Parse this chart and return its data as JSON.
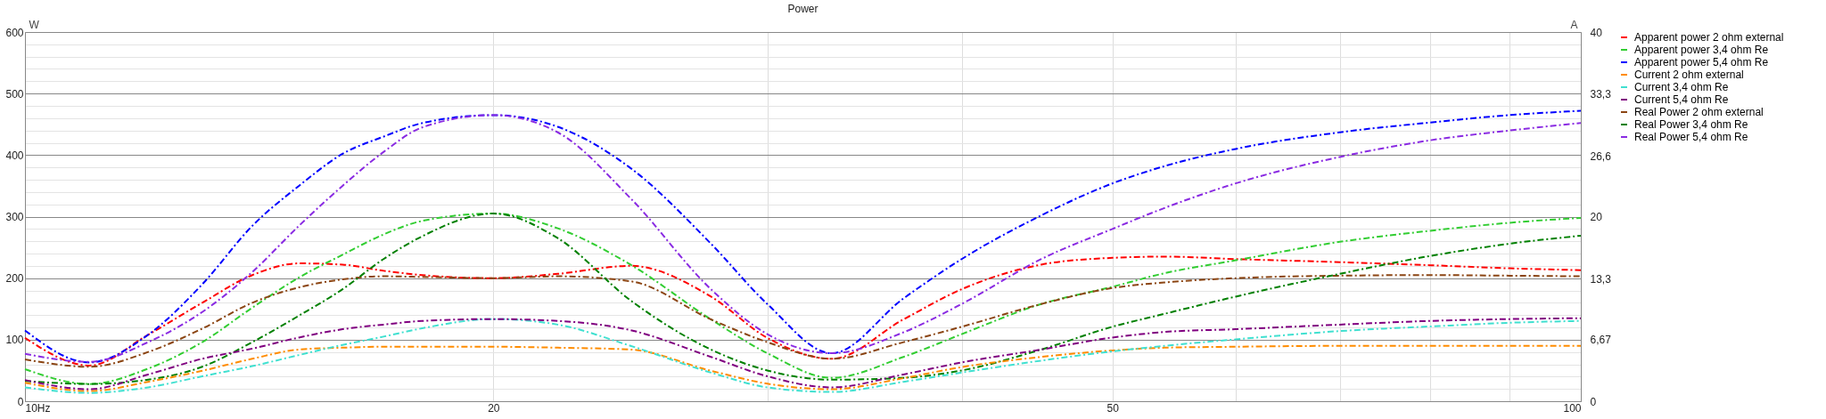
{
  "chart_data": {
    "type": "line",
    "title": "Power",
    "ylabel": "W",
    "y2label": "A",
    "log": "x",
    "grid": true,
    "legend": "right",
    "line_style": "dashed",
    "x": [
      10,
      11,
      12,
      13,
      14,
      15,
      16,
      17,
      18,
      20,
      22,
      24.5,
      27.6,
      30,
      33,
      36.7,
      40,
      45,
      50,
      54,
      60,
      70,
      80,
      90,
      100
    ],
    "xlim": [
      10,
      100
    ],
    "xticks": [
      {
        "value": 10,
        "label": "10Hz"
      },
      20,
      {
        "value": 30,
        "label": null
      },
      {
        "value": 40,
        "label": null
      },
      50,
      {
        "value": 60,
        "label": null
      },
      {
        "value": 70,
        "label": null
      },
      {
        "value": 80,
        "label": null
      },
      {
        "value": 90,
        "label": null
      },
      100
    ],
    "ylim": [
      0,
      600
    ],
    "yticks": [
      0,
      {
        "value": 20,
        "label": null
      },
      {
        "value": 40,
        "label": null
      },
      {
        "value": 60,
        "label": null
      },
      {
        "value": 80,
        "label": null
      },
      100,
      {
        "value": 120,
        "label": null
      },
      {
        "value": 140,
        "label": null
      },
      {
        "value": 160,
        "label": null
      },
      {
        "value": 180,
        "label": null
      },
      200,
      {
        "value": 220,
        "label": null
      },
      {
        "value": 240,
        "label": null
      },
      {
        "value": 260,
        "label": null
      },
      {
        "value": 280,
        "label": null
      },
      300,
      {
        "value": 320,
        "label": null
      },
      {
        "value": 340,
        "label": null
      },
      {
        "value": 360,
        "label": null
      },
      {
        "value": 380,
        "label": null
      },
      400,
      {
        "value": 420,
        "label": null
      },
      {
        "value": 440,
        "label": null
      },
      {
        "value": 460,
        "label": null
      },
      {
        "value": 480,
        "label": null
      },
      500,
      {
        "value": 520,
        "label": null
      },
      {
        "value": 540,
        "label": null
      },
      {
        "value": 560,
        "label": null
      },
      {
        "value": 580,
        "label": null
      },
      600
    ],
    "y2lim": [
      0,
      40
    ],
    "y2ticks": [
      0,
      {
        "value": 6.67,
        "label": "6,67"
      },
      {
        "value": 13.3,
        "label": "13,3"
      },
      20,
      {
        "value": 26.6,
        "label": "26,6"
      },
      {
        "value": 33.3,
        "label": "33,3"
      },
      40
    ],
    "series": [
      {
        "name": "Apparent power 2 ohm external",
        "color": "#ff0000",
        "values": [
          103,
          58,
          108,
          160,
          205,
          224,
          222,
          212,
          205,
          200,
          207,
          220,
          170,
          103,
          69,
          133,
          182,
          222,
          233,
          235,
          231,
          226,
          221,
          216,
          213
        ]
      },
      {
        "name": "Apparent power 3,4 ohm Re",
        "color": "#32cd32",
        "values": [
          52,
          28,
          53,
          96,
          152,
          201,
          238,
          271,
          293,
          305,
          281,
          222,
          133,
          78,
          38,
          72,
          109,
          158,
          186,
          208,
          229,
          259,
          277,
          290,
          298
        ]
      },
      {
        "name": "Apparent power 5,4 ohm Re",
        "color": "#0000ff",
        "values": [
          115,
          63,
          108,
          190,
          285,
          350,
          402,
          430,
          452,
          465,
          446,
          379,
          256,
          158,
          78,
          167,
          231,
          302,
          354,
          382,
          410,
          437,
          453,
          465,
          472
        ]
      },
      {
        "name": "Current 2 ohm external",
        "color": "#ff8c00",
        "axis": "y2",
        "values": [
          2.0,
          1.1,
          2.1,
          3.3,
          4.6,
          5.6,
          5.8,
          5.9,
          5.9,
          5.9,
          5.8,
          5.6,
          3.3,
          1.9,
          1.3,
          2.5,
          3.7,
          4.8,
          5.5,
          5.8,
          5.9,
          6.0,
          6.0,
          6.0,
          6.0
        ]
      },
      {
        "name": "Current 3,4 ohm Re",
        "color": "#40e0d0",
        "axis": "y2",
        "values": [
          1.5,
          0.9,
          1.5,
          2.7,
          3.8,
          5.0,
          6.1,
          7.0,
          7.9,
          8.9,
          8.3,
          6.0,
          3.1,
          1.5,
          1.0,
          2.1,
          3.1,
          4.4,
          5.4,
          6.0,
          6.7,
          7.6,
          8.1,
          8.5,
          8.7
        ]
      },
      {
        "name": "Current 5,4 ohm Re",
        "color": "#800080",
        "axis": "y2",
        "values": [
          2.3,
          1.3,
          2.9,
          4.6,
          5.7,
          6.9,
          7.8,
          8.3,
          8.7,
          8.9,
          8.7,
          7.7,
          4.8,
          2.7,
          1.5,
          2.9,
          4.2,
          5.6,
          6.9,
          7.5,
          7.8,
          8.3,
          8.7,
          8.9,
          9.0
        ]
      },
      {
        "name": "Real Power 2 ohm external",
        "color": "#8b4513",
        "values": [
          68,
          56,
          80,
          118,
          160,
          185,
          198,
          203,
          202,
          200,
          203,
          195,
          133,
          96,
          69,
          96,
          121,
          158,
          184,
          193,
          200,
          204,
          205,
          204,
          203
        ]
      },
      {
        "name": "Real Power 3,4 ohm Re",
        "color": "#008000",
        "values": [
          33,
          28,
          35,
          56,
          96,
          139,
          182,
          231,
          268,
          305,
          265,
          164,
          84,
          50,
          35,
          38,
          50,
          84,
          121,
          142,
          170,
          207,
          236,
          256,
          269
        ]
      },
      {
        "name": "Real Power 5,4 ohm Re",
        "color": "#8a2be2",
        "values": [
          77,
          64,
          96,
          145,
          210,
          285,
          350,
          405,
          445,
          465,
          437,
          330,
          182,
          109,
          78,
          112,
          158,
          231,
          280,
          314,
          354,
          397,
          424,
          440,
          452
        ]
      }
    ]
  }
}
